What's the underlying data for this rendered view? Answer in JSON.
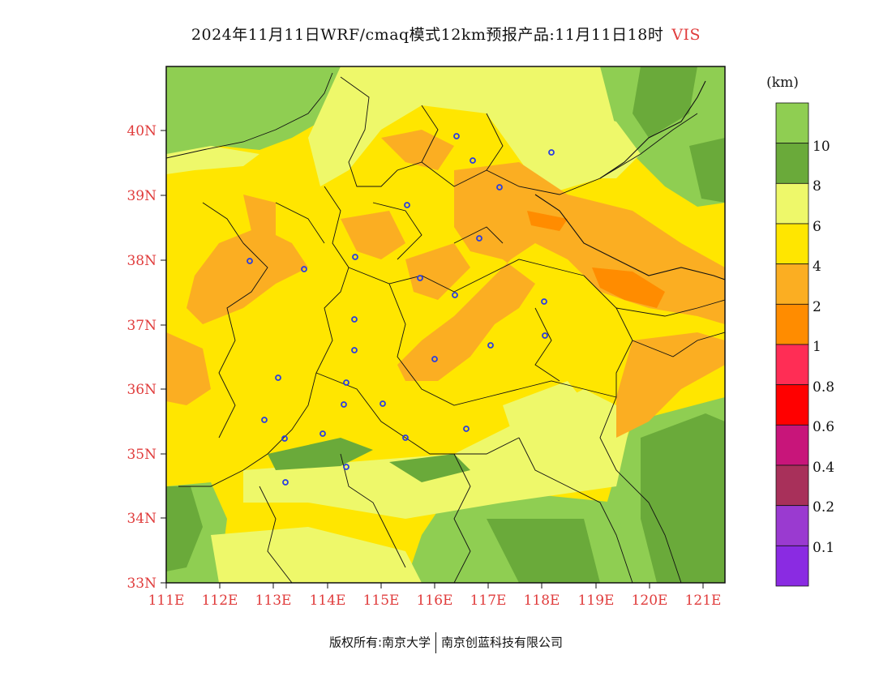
{
  "title": {
    "main": "2024年11月11日WRF/cmaq模式12km预报产品:11月11日18时",
    "variable": "VIS"
  },
  "map": {
    "lat_ticks": [
      "40N",
      "39N",
      "38N",
      "37N",
      "36N",
      "35N",
      "34N",
      "33N"
    ],
    "lon_ticks": [
      "111E",
      "112E",
      "113E",
      "114E",
      "115E",
      "116E",
      "117E",
      "118E",
      "119E",
      "120E",
      "121E"
    ],
    "lon_range": [
      111,
      121.4
    ],
    "lat_range": [
      33,
      41
    ],
    "city_marker_color": "#2a3ee0"
  },
  "colorbar": {
    "unit": "(km)",
    "labels": [
      "10",
      "8",
      "6",
      "4",
      "2",
      "1",
      "0.8",
      "0.6",
      "0.4",
      "0.2",
      "0.1"
    ],
    "colors": [
      "#8fce52",
      "#6aaa3a",
      "#eef86a",
      "#ffe600",
      "#fbae22",
      "#ff8c00",
      "#ff2d55",
      "#ff0000",
      "#c8157a",
      "#a8305a",
      "#9a3ad0",
      "#8a2be2"
    ]
  },
  "footer": {
    "left": "版权所有:南京大学",
    "right": "南京创蓝科技有限公司"
  }
}
